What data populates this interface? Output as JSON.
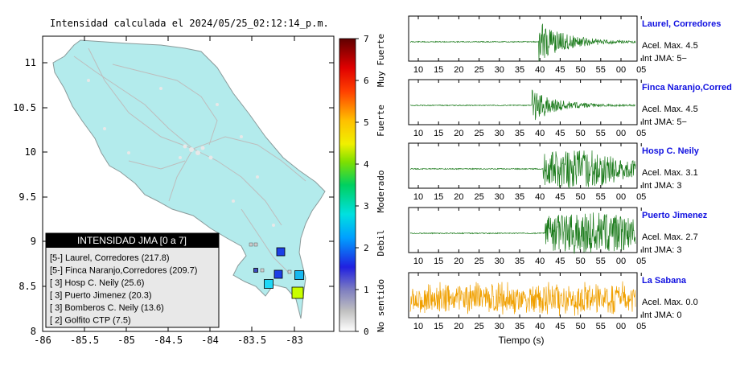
{
  "map": {
    "title": "Intensidad calculada el 2024/05/25_02:12:14_p.m.",
    "lon_ticks": [
      "-86",
      "-85.5",
      "-85",
      "-84.5",
      "-84",
      "-83.5",
      "-83"
    ],
    "lat_ticks": [
      "8",
      "8.5",
      "9",
      "9.5",
      "10",
      "10.5",
      "11"
    ],
    "legend_title": "INTENSIDAD JMA [0 a 7]",
    "legend_items": [
      "[5-] Laurel, Corredores (217.8)",
      "[5-] Finca Naranjo,Corredores (209.7)",
      "[ 3] Hosp C. Neily (25.6)",
      "[ 3] Puerto Jimenez (20.3)",
      "[ 3] Bomberos C. Neily (13.6)",
      "[ 2] Golfito CTP (7.5)"
    ],
    "markers": [
      {
        "name": "laurel",
        "color": "#1c3fe6"
      },
      {
        "name": "finca-naranjo",
        "color": "#1c3fe6"
      },
      {
        "name": "hosp-neily",
        "color": "#18b8f0"
      },
      {
        "name": "puerto-jimenez",
        "color": "#1fd8f7"
      },
      {
        "name": "bomberos-neily",
        "color": "#c8ff00"
      },
      {
        "name": "golfito",
        "color": "#3f4cc0"
      }
    ]
  },
  "colorbar": {
    "ticks": [
      "0",
      "1",
      "2",
      "3",
      "4",
      "5",
      "6",
      "7"
    ],
    "labels": [
      "No sentido",
      "Debil",
      "Moderado",
      "Fuerte",
      "Muy Fuerte"
    ]
  },
  "waveforms": {
    "time_ticks": [
      "10",
      "15",
      "20",
      "25",
      "30",
      "35",
      "40",
      "45",
      "50",
      "55",
      "00",
      "05"
    ],
    "xlabel": "Tiempo (s)",
    "stations": [
      {
        "name": "Laurel, Corredores",
        "accel": "Acel. Max. 4.5",
        "jma": "Int JMA: 5−",
        "color": "#1a7a1a"
      },
      {
        "name": "Finca Naranjo,Corredor",
        "accel": "Acel. Max. 4.5",
        "jma": "Int JMA: 5−",
        "color": "#1a7a1a"
      },
      {
        "name": "Hosp C. Neily",
        "accel": "Acel. Max. 3.1",
        "jma": "Int JMA: 3",
        "color": "#1a7a1a"
      },
      {
        "name": "Puerto Jimenez",
        "accel": "Acel. Max. 2.7",
        "jma": "Int JMA: 3",
        "color": "#1a7a1a"
      },
      {
        "name": "La Sabana",
        "accel": "Acel. Max. 0.0",
        "jma": "Int JMA: 0",
        "color": "#f0a000"
      }
    ],
    "station_name_color": "#1010e0"
  }
}
